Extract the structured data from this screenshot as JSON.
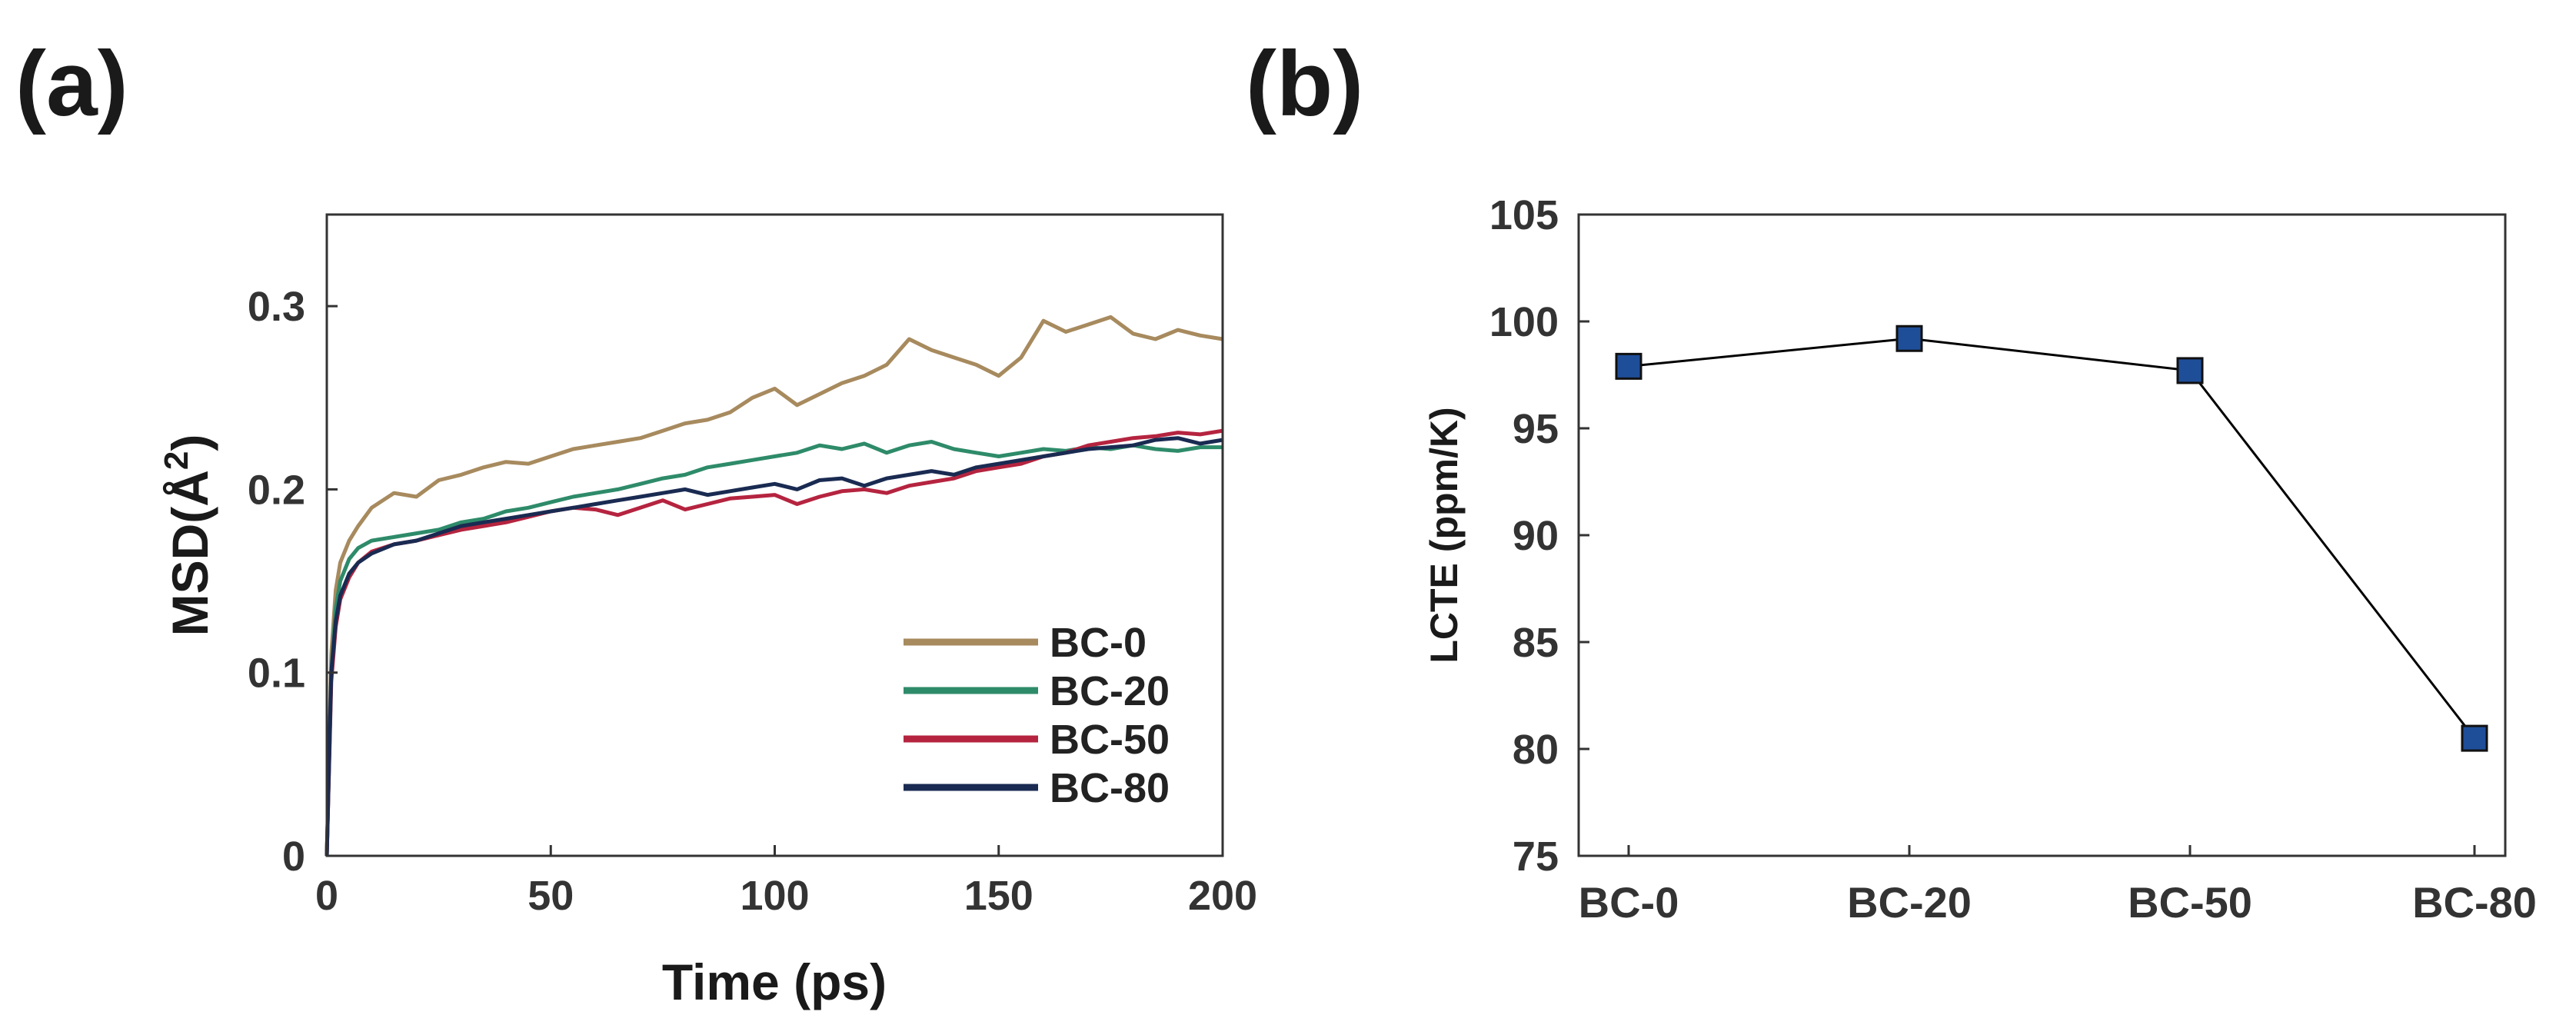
{
  "panels": {
    "a_label": "(a)",
    "b_label": "(b)"
  },
  "chart_data": [
    {
      "type": "line",
      "panel": "(a)",
      "title": "",
      "xlabel": "Time (ps)",
      "ylabel": "MSD(Å²)",
      "ylabel_base": "MSD(Å",
      "ylabel_sup": "2",
      "ylabel_close": ")",
      "xlim": [
        0,
        200
      ],
      "ylim": [
        0,
        0.35
      ],
      "xticks": [
        0,
        50,
        100,
        150,
        200
      ],
      "yticks": [
        0,
        0.1,
        0.2,
        0.3
      ],
      "xtick_labels": [
        "0",
        "50",
        "100",
        "150",
        "200"
      ],
      "ytick_labels": [
        "0",
        "0.1",
        "0.2",
        "0.3"
      ],
      "legend_position": "bottom-right",
      "series": [
        {
          "name": "BC-0",
          "color": "#A78A5E",
          "x": [
            0,
            1,
            2,
            3,
            5,
            7,
            10,
            15,
            20,
            25,
            30,
            35,
            40,
            45,
            50,
            55,
            60,
            65,
            70,
            75,
            80,
            85,
            90,
            95,
            100,
            105,
            110,
            115,
            120,
            125,
            130,
            135,
            140,
            145,
            150,
            155,
            160,
            165,
            170,
            175,
            180,
            185,
            190,
            195,
            200
          ],
          "y": [
            0,
            0.11,
            0.145,
            0.16,
            0.172,
            0.18,
            0.19,
            0.198,
            0.196,
            0.205,
            0.208,
            0.212,
            0.215,
            0.214,
            0.218,
            0.222,
            0.224,
            0.226,
            0.228,
            0.232,
            0.236,
            0.238,
            0.242,
            0.25,
            0.255,
            0.246,
            0.252,
            0.258,
            0.262,
            0.268,
            0.282,
            0.276,
            0.272,
            0.268,
            0.262,
            0.272,
            0.292,
            0.286,
            0.29,
            0.294,
            0.285,
            0.282,
            0.287,
            0.284,
            0.282
          ]
        },
        {
          "name": "BC-20",
          "color": "#2E8B6A",
          "x": [
            0,
            1,
            2,
            3,
            5,
            7,
            10,
            15,
            20,
            25,
            30,
            35,
            40,
            45,
            50,
            55,
            60,
            65,
            70,
            75,
            80,
            85,
            90,
            95,
            100,
            105,
            110,
            115,
            120,
            125,
            130,
            135,
            140,
            145,
            150,
            155,
            160,
            165,
            170,
            175,
            180,
            185,
            190,
            195,
            200
          ],
          "y": [
            0,
            0.1,
            0.135,
            0.15,
            0.162,
            0.168,
            0.172,
            0.174,
            0.176,
            0.178,
            0.182,
            0.184,
            0.188,
            0.19,
            0.193,
            0.196,
            0.198,
            0.2,
            0.203,
            0.206,
            0.208,
            0.212,
            0.214,
            0.216,
            0.218,
            0.22,
            0.224,
            0.222,
            0.225,
            0.22,
            0.224,
            0.226,
            0.222,
            0.22,
            0.218,
            0.22,
            0.222,
            0.221,
            0.223,
            0.222,
            0.224,
            0.222,
            0.221,
            0.223,
            0.223
          ]
        },
        {
          "name": "BC-50",
          "color": "#B5243F",
          "x": [
            0,
            1,
            2,
            3,
            5,
            7,
            10,
            15,
            20,
            25,
            30,
            35,
            40,
            45,
            50,
            55,
            60,
            65,
            70,
            75,
            80,
            85,
            90,
            95,
            100,
            105,
            110,
            115,
            120,
            125,
            130,
            135,
            140,
            145,
            150,
            155,
            160,
            165,
            170,
            175,
            180,
            185,
            190,
            195,
            200
          ],
          "y": [
            0,
            0.095,
            0.125,
            0.14,
            0.152,
            0.16,
            0.166,
            0.17,
            0.172,
            0.175,
            0.178,
            0.18,
            0.182,
            0.185,
            0.188,
            0.19,
            0.189,
            0.186,
            0.19,
            0.194,
            0.189,
            0.192,
            0.195,
            0.196,
            0.197,
            0.192,
            0.196,
            0.199,
            0.2,
            0.198,
            0.202,
            0.204,
            0.206,
            0.21,
            0.212,
            0.214,
            0.218,
            0.22,
            0.224,
            0.226,
            0.228,
            0.229,
            0.231,
            0.23,
            0.232
          ]
        },
        {
          "name": "BC-80",
          "color": "#1A2B52",
          "x": [
            0,
            1,
            2,
            3,
            5,
            7,
            10,
            15,
            20,
            25,
            30,
            35,
            40,
            45,
            50,
            55,
            60,
            65,
            70,
            75,
            80,
            85,
            90,
            95,
            100,
            105,
            110,
            115,
            120,
            125,
            130,
            135,
            140,
            145,
            150,
            155,
            160,
            165,
            170,
            175,
            180,
            185,
            190,
            195,
            200
          ],
          "y": [
            0,
            0.1,
            0.128,
            0.142,
            0.154,
            0.16,
            0.165,
            0.17,
            0.172,
            0.176,
            0.18,
            0.182,
            0.184,
            0.186,
            0.188,
            0.19,
            0.192,
            0.194,
            0.196,
            0.198,
            0.2,
            0.197,
            0.199,
            0.201,
            0.203,
            0.2,
            0.205,
            0.206,
            0.202,
            0.206,
            0.208,
            0.21,
            0.208,
            0.212,
            0.214,
            0.216,
            0.218,
            0.22,
            0.222,
            0.223,
            0.224,
            0.227,
            0.228,
            0.225,
            0.227
          ]
        }
      ]
    },
    {
      "type": "line",
      "panel": "(b)",
      "title": "",
      "xlabel": "",
      "ylabel": "LCTE (ppm/K)",
      "categories": [
        "BC-0",
        "BC-20",
        "BC-50",
        "BC-80"
      ],
      "ylim": [
        75,
        105
      ],
      "yticks": [
        75,
        80,
        85,
        90,
        95,
        100,
        105
      ],
      "ytick_labels": [
        "75",
        "80",
        "85",
        "90",
        "95",
        "100",
        "105"
      ],
      "series": [
        {
          "name": "LCTE",
          "values": [
            97.9,
            99.2,
            97.7,
            80.5
          ],
          "color": "#000000",
          "marker": "square",
          "marker_color": "#1F4E99"
        }
      ]
    }
  ]
}
